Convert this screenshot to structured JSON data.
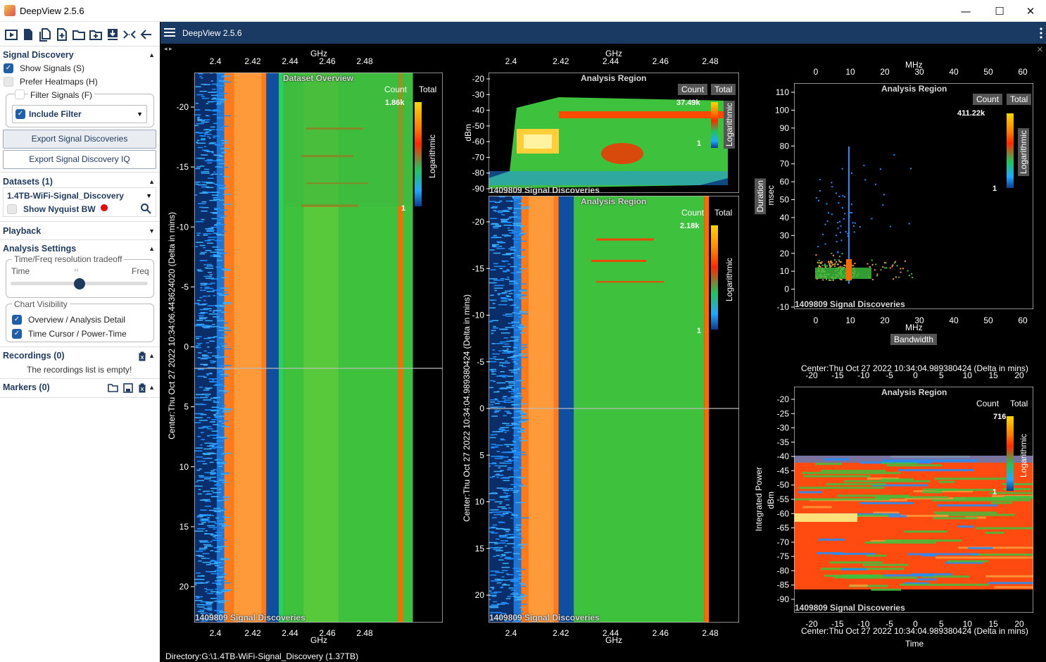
{
  "window": {
    "title": "DeepView 2.5.6",
    "minimize": "—",
    "maximize": "☐",
    "close": "✕"
  },
  "toolbar": {
    "icons": [
      "play-icon",
      "document-icon",
      "documents-icon",
      "new-document-icon",
      "folder-icon",
      "folder-add-icon",
      "download-icon",
      "collapse-icon",
      "back-arrow-icon"
    ]
  },
  "signal_discovery": {
    "heading": "Signal Discovery",
    "show_signals": {
      "label": "Show Signals (S)",
      "checked": true
    },
    "prefer_heatmaps": {
      "label": "Prefer Heatmaps (H)",
      "checked": false
    },
    "filter_signals": {
      "label": "Filter Signals (F)",
      "checked": false
    },
    "include_filter": {
      "label": "Include Filter",
      "checked": true
    },
    "export_button": "Export Signal Discoveries",
    "export_iq_button": "Export Signal Discovery IQ"
  },
  "datasets": {
    "heading": "Datasets (1)",
    "selected": "1.4TB-WiFi-Signal_Discovery",
    "show_nyquist": {
      "label": "Show Nyquist BW",
      "checked": false
    }
  },
  "playback": {
    "heading": "Playback"
  },
  "analysis_settings": {
    "heading": "Analysis Settings",
    "tradeoff_legend": "Time/Freq resolution tradeoff",
    "time_label": "Time",
    "freq_label": "Freq",
    "slider_value": 0.5,
    "chart_visibility_legend": "Chart Visibility",
    "overview": {
      "label": "Overview / Analysis Detail",
      "checked": true
    },
    "time_cursor": {
      "label": "Time Cursor / Power-Time",
      "checked": true
    }
  },
  "recordings": {
    "heading": "Recordings (0)",
    "empty_text": "The recordings list is empty!"
  },
  "markers": {
    "heading": "Markers (0)"
  },
  "main": {
    "header_title": "DeepView 2.5.6",
    "status": "Directory:G:\\1.4TB-WiFi-Signal_Discovery (1.37TB)"
  },
  "chart_data": [
    {
      "type": "heatmap",
      "title": "Dataset Overview",
      "xlabel": "GHz",
      "ylabel": "Center:Thu Oct 27 2022 10:34:06.443624020 (Delta in mins)",
      "x_ticks": [
        "2.4",
        "2.42",
        "2.44",
        "2.46",
        "2.48"
      ],
      "y_ticks": [
        "-20",
        "-15",
        "-10",
        "-5",
        "0",
        "5",
        "10",
        "15",
        "20"
      ],
      "colorbar": {
        "header_count": "Count",
        "header_total": "Total",
        "max": "1.86k",
        "min": "1",
        "scale": "Logarithmic"
      },
      "footer": "1409809 Signal Discoveries"
    },
    {
      "type": "heatmap",
      "title": "Analysis Region",
      "xlabel": "",
      "ylabel": "dBm",
      "x_ticks": [
        "2.4",
        "2.42",
        "2.44",
        "2.46",
        "2.48"
      ],
      "x_label_top": "GHz",
      "y_ticks": [
        "-20",
        "-30",
        "-40",
        "-50",
        "-60",
        "-70",
        "-80",
        "-90"
      ],
      "colorbar": {
        "header_count": "Count",
        "header_total": "Total",
        "max": "37.49k",
        "min": "1",
        "scale": "Logarithmic"
      },
      "footer": "1409809 Signal Discoveries"
    },
    {
      "type": "heatmap",
      "title": "Analysis Region",
      "xlabel": "GHz",
      "ylabel": "Center:Thu Oct 27 2022 10:34:04.989380424 (Delta in mins)",
      "x_ticks": [
        "2.4",
        "2.42",
        "2.44",
        "2.46",
        "2.48"
      ],
      "y_ticks": [
        "-20",
        "-15",
        "-10",
        "-5",
        "0",
        "5",
        "10",
        "15",
        "20"
      ],
      "colorbar": {
        "header_count": "Count",
        "header_total": "Total",
        "max": "2.18k",
        "min": "1",
        "scale": "Logarithmic"
      },
      "footer": "1409809 Signal Discoveries"
    },
    {
      "type": "scatter",
      "title": "Analysis Region",
      "xlabel": "Bandwidth",
      "xlabel_unit": "MHz",
      "ylabel": "Duration",
      "ylabel_unit": "msec",
      "x_ticks": [
        "0",
        "10",
        "20",
        "30",
        "40",
        "50",
        "60"
      ],
      "y_ticks": [
        "110",
        "100",
        "90",
        "80",
        "70",
        "60",
        "50",
        "40",
        "30",
        "20",
        "10",
        "0",
        "-10"
      ],
      "colorbar": {
        "header_count": "Count",
        "header_total": "Total",
        "max": "411.22k",
        "min": "1",
        "scale": "Logarithmic"
      },
      "footer": "1409809 Signal Discoveries"
    },
    {
      "type": "heatmap",
      "title": "Analysis Region",
      "xlabel": "Time",
      "x_header": "Center:Thu Oct 27 2022 10:34:04.989380424 (Delta in mins)",
      "ylabel": "Integrated Power",
      "ylabel_unit": "dBm",
      "x_ticks": [
        "-20",
        "-15",
        "-10",
        "-5",
        "0",
        "5",
        "10",
        "15",
        "20"
      ],
      "y_ticks": [
        "-20",
        "-25",
        "-30",
        "-35",
        "-40",
        "-45",
        "-50",
        "-55",
        "-60",
        "-65",
        "-70",
        "-75",
        "-80",
        "-85",
        "-90"
      ],
      "colorbar": {
        "header_count": "Count",
        "header_total": "Total",
        "max": "716",
        "min": "1",
        "scale": "Logarithmic"
      },
      "footer": "1409809 Signal Discoveries"
    }
  ]
}
